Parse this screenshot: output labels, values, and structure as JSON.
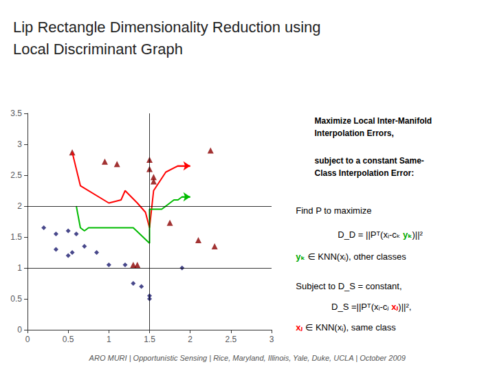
{
  "chart_data": {
    "type": "scatter",
    "title": "Lip Rectangle Dimensionality Reduction using\nLocal Discriminant Graph",
    "xlim": [
      0,
      3
    ],
    "ylim": [
      0,
      3.5
    ],
    "xticks": [
      0,
      0.5,
      1,
      1.5,
      2,
      2.5,
      3
    ],
    "yticks": [
      0,
      0.5,
      1,
      1.5,
      2,
      2.5,
      3,
      3.5
    ],
    "grid": false,
    "hlines": [
      1.0,
      2.0
    ],
    "vlines": [
      1.5
    ],
    "series": [
      {
        "type": "scatter",
        "marker": "diamond",
        "color": "#1a1a6e",
        "x": [
          0.2,
          0.35,
          0.5,
          0.6,
          0.35,
          0.55,
          0.7,
          0.5,
          0.85,
          1.0,
          1.2,
          1.3,
          1.4,
          1.5,
          1.5,
          1.9
        ],
        "values": [
          1.65,
          1.55,
          1.6,
          1.55,
          1.3,
          1.25,
          1.35,
          1.2,
          1.25,
          1.05,
          1.05,
          0.75,
          0.7,
          0.55,
          0.5,
          1.0
        ]
      },
      {
        "type": "scatter",
        "marker": "triangle",
        "color": "#8b0000",
        "x": [
          0.55,
          0.95,
          1.1,
          1.3,
          1.35,
          1.5,
          1.5,
          1.55,
          1.55,
          1.75,
          2.1,
          2.3,
          2.25
        ],
        "values": [
          2.87,
          2.72,
          2.68,
          1.05,
          1.05,
          2.75,
          2.6,
          2.47,
          2.4,
          1.73,
          1.45,
          1.35,
          2.9
        ]
      },
      {
        "type": "line",
        "line_style": "solid",
        "color": "red",
        "x": [
          0.55,
          0.65,
          1.0,
          1.15,
          1.2,
          1.35,
          1.45,
          1.5,
          1.55,
          1.7,
          1.85,
          2.0
        ],
        "values": [
          2.87,
          2.33,
          2.05,
          2.1,
          2.25,
          2.05,
          1.9,
          1.65,
          2.25,
          2.55,
          2.65,
          2.65
        ]
      },
      {
        "type": "line",
        "line_style": "solid",
        "color": "#00bb00",
        "x": [
          0.6,
          0.65,
          0.7,
          0.75,
          1.3,
          1.5,
          1.5,
          1.65,
          1.8,
          1.85,
          1.9,
          2.0
        ],
        "values": [
          2.0,
          1.65,
          1.6,
          1.65,
          1.65,
          1.4,
          1.95,
          1.95,
          2.1,
          2.1,
          2.15,
          2.15
        ]
      }
    ],
    "annotations": [
      [
        {
          "text": "Maximize Local Inter-Manifold"
        }
      ],
      [
        {
          "text": "Interpolation Errors,"
        }
      ],
      [
        {
          "text": "subject to a constant Same-"
        }
      ],
      [
        {
          "text": "Class Interpolation Error:"
        }
      ],
      [
        {
          "text": "Find P to maximize"
        }
      ],
      [
        {
          "text": "D_D = ||Pᵀ(xᵢ-cₖ "
        },
        {
          "text": "yₖ",
          "color": "#00aa00"
        },
        {
          "text": ")||²"
        }
      ],
      [
        {
          "text": "yₖ",
          "color": "#00aa00"
        },
        {
          "text": " ∈ KNN(xᵢ), other classes"
        }
      ],
      [
        {
          "text": "Subject to D_S = constant,"
        }
      ],
      [
        {
          "text": "D_S =||Pᵀ(xᵢ-cⱼ "
        },
        {
          "text": "xⱼ",
          "color": "red"
        },
        {
          "text": ")||²,"
        }
      ],
      [
        {
          "text": "xⱼ",
          "color": "red"
        },
        {
          "text": " ∈ KNN(xᵢ), same class"
        }
      ],
      [
        {
          "text": "ARO MURI | Opportunistic Sensing | Rice, Maryland, Illinois, Yale, Duke, UCLA | October 2009"
        }
      ]
    ]
  }
}
